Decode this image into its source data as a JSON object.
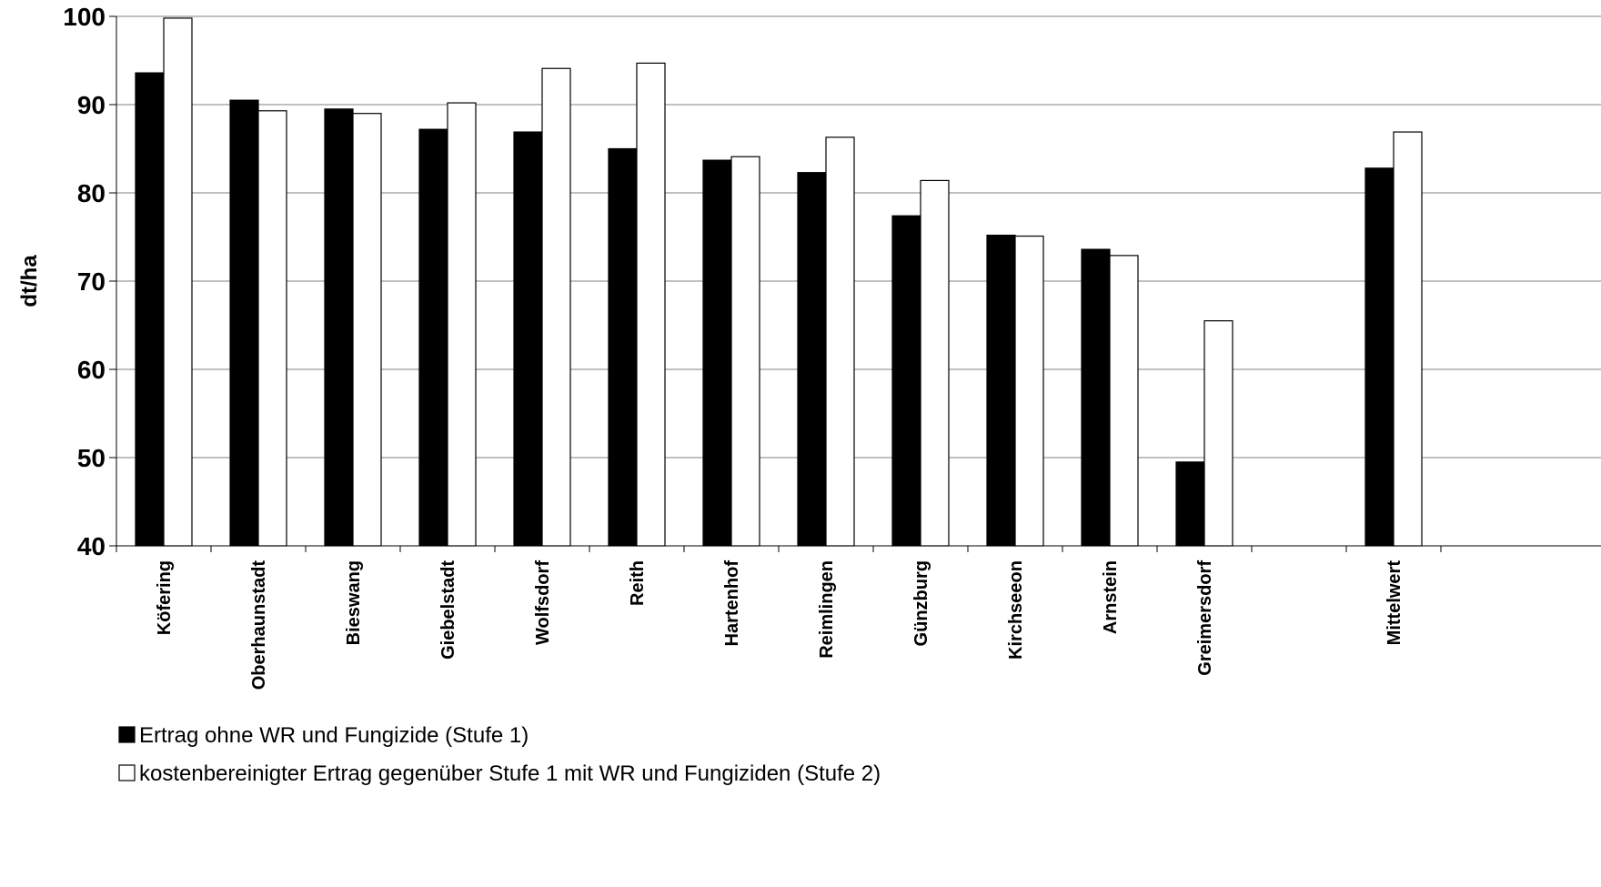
{
  "chart_data": {
    "type": "bar",
    "title": "",
    "xlabel": "",
    "ylabel": "dt/ha",
    "ylim": [
      40,
      100
    ],
    "yticks": [
      40,
      50,
      60,
      70,
      80,
      90,
      100
    ],
    "grid": "horizontal",
    "legend_position": "bottom-left",
    "categories": [
      "Köfering",
      "Oberhaunstadt",
      "Bieswang",
      "Giebelstadt",
      "Wolfsdorf",
      "Reith",
      "Hartenhof",
      "Reimlingen",
      "Günzburg",
      "Kirchseeon",
      "Arnstein",
      "Greimersdorf",
      "",
      "Mittelwert"
    ],
    "series": [
      {
        "name": "Ertrag ohne WR und Fungizide (Stufe 1)",
        "color": "#000000",
        "values": [
          93.6,
          90.5,
          89.5,
          87.2,
          86.9,
          85.0,
          83.7,
          82.3,
          77.4,
          75.2,
          73.6,
          49.5,
          null,
          82.8
        ]
      },
      {
        "name": "kostenbereinigter Ertrag gegenüber Stufe 1 mit WR und Fungiziden (Stufe 2)",
        "color": "#ffffff",
        "values": [
          99.8,
          89.3,
          89.0,
          90.2,
          94.1,
          94.7,
          84.1,
          86.3,
          81.4,
          75.1,
          72.9,
          65.5,
          null,
          86.9
        ]
      }
    ]
  }
}
